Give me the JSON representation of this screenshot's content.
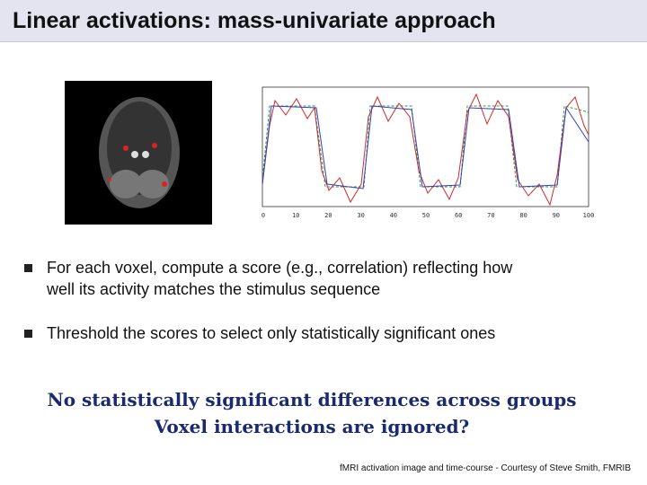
{
  "header": {
    "title": "Linear activations: mass-univariate approach"
  },
  "figure": {
    "xticks": [
      "0",
      "10",
      "20",
      "30",
      "40",
      "50",
      "60",
      "70",
      "80",
      "90",
      "100"
    ]
  },
  "bullets": [
    [
      "For each voxel, compute a score (e.g., correlation) reflecting how",
      "well its activity matches the stimulus sequence"
    ],
    [
      "Threshold the scores to select only statistically significant ones"
    ]
  ],
  "note": [
    "No statistically significant differences across groups",
    "Voxel interactions are ignored?"
  ],
  "credit": "fMRI activation image and time-course - Courtesy of Steve Smith, FMRIB"
}
